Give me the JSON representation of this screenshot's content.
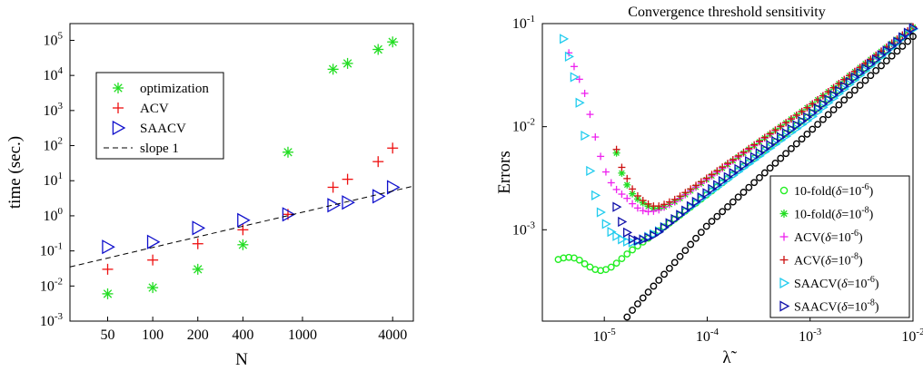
{
  "chart_data": [
    {
      "type": "scatter",
      "title": "",
      "xlabel": "N",
      "ylabel": "time (sec.)",
      "x_scale": "log",
      "y_scale": "log",
      "xlim": [
        28,
        5500
      ],
      "ylim": [
        0.001,
        300000
      ],
      "x_ticks": [
        50,
        100,
        200,
        400,
        1000,
        4000
      ],
      "x_tick_labels": [
        "50",
        "100",
        "200",
        "400",
        "1000",
        "4000"
      ],
      "y_ticks": [
        0.001,
        0.01,
        0.1,
        1,
        10,
        100,
        1000,
        10000,
        100000
      ],
      "y_tick_labels": [
        {
          "base": "10",
          "exp": "-3"
        },
        {
          "base": "10",
          "exp": "-2"
        },
        {
          "base": "10",
          "exp": "-1"
        },
        {
          "base": "10",
          "exp": "0"
        },
        {
          "base": "10",
          "exp": "1"
        },
        {
          "base": "10",
          "exp": "2"
        },
        {
          "base": "10",
          "exp": "3"
        },
        {
          "base": "10",
          "exp": "4"
        },
        {
          "base": "10",
          "exp": "5"
        }
      ],
      "grid": false,
      "legend_position": "top-left",
      "series": [
        {
          "name": "optimization",
          "marker": "asterisk",
          "color": "#22dd22",
          "x": [
            50,
            100,
            200,
            400,
            800,
            1600,
            2000,
            3200,
            4000
          ],
          "y": [
            0.006,
            0.009,
            0.03,
            0.15,
            65,
            15000,
            22000,
            55000,
            90000
          ]
        },
        {
          "name": "ACV",
          "marker": "plus",
          "color": "#ee1111",
          "x": [
            50,
            100,
            200,
            400,
            800,
            1600,
            2000,
            3200,
            4000
          ],
          "y": [
            0.03,
            0.055,
            0.16,
            0.4,
            1.1,
            6.5,
            11,
            35,
            85
          ]
        },
        {
          "name": "SAACV",
          "marker": "triangle-right",
          "color": "#1111cc",
          "x": [
            50,
            100,
            200,
            400,
            800,
            1600,
            2000,
            3200,
            4000
          ],
          "y": [
            0.13,
            0.18,
            0.45,
            0.75,
            1.1,
            2.0,
            2.4,
            3.6,
            6.5
          ]
        },
        {
          "name": "slope 1",
          "marker": "dashed-line",
          "color": "#000000",
          "x": [
            28,
            5500
          ],
          "y": [
            0.035,
            7.0
          ]
        }
      ]
    },
    {
      "type": "scatter",
      "title": "Convergence threshold sensitivity",
      "xlabel": "λ̃",
      "ylabel": "Errors",
      "x_scale": "log",
      "y_scale": "log",
      "xlim": [
        2.5e-06,
        0.01
      ],
      "ylim": [
        0.00013,
        0.1
      ],
      "x_ticks": [
        1e-05,
        0.0001,
        0.001,
        0.01
      ],
      "x_tick_labels": [
        {
          "base": "10",
          "exp": "-5"
        },
        {
          "base": "10",
          "exp": "-4"
        },
        {
          "base": "10",
          "exp": "-3"
        },
        {
          "base": "10",
          "exp": "-2"
        }
      ],
      "y_ticks": [
        0.001,
        0.01,
        0.1
      ],
      "y_tick_labels": [
        {
          "base": "10",
          "exp": "-3"
        },
        {
          "base": "10",
          "exp": "-2"
        },
        {
          "base": "10",
          "exp": "-1"
        }
      ],
      "grid": false,
      "legend_position": "bottom-right",
      "legend_entries": [
        {
          "prefix": "10-fold(",
          "delta": "δ",
          "eq": "=10",
          "exp": "-6",
          "suffix": ")"
        },
        {
          "prefix": "10-fold(",
          "delta": "δ",
          "eq": "=10",
          "exp": "-8",
          "suffix": ")"
        },
        {
          "prefix": "ACV(",
          "delta": "δ",
          "eq": "=10",
          "exp": "-6",
          "suffix": ")"
        },
        {
          "prefix": "ACV(",
          "delta": "δ",
          "eq": "=10",
          "exp": "-8",
          "suffix": ")"
        },
        {
          "prefix": "SAACV(",
          "delta": "δ",
          "eq": "=10",
          "exp": "-6",
          "suffix": ")"
        },
        {
          "prefix": "SAACV(",
          "delta": "δ",
          "eq": "=10",
          "exp": "-8",
          "suffix": ")"
        }
      ],
      "series": [
        {
          "marker": "circle",
          "color": "#22ee22",
          "curve": "tenfold6"
        },
        {
          "marker": "asterisk",
          "color": "#22dd22",
          "curve": "tenfold8"
        },
        {
          "marker": "plus",
          "color": "#ee22ee",
          "curve": "acv6"
        },
        {
          "marker": "plus",
          "color": "#cc1111",
          "curve": "acv8"
        },
        {
          "marker": "triangle-right",
          "color": "#22ccee",
          "curve": "saacv6"
        },
        {
          "marker": "triangle-right",
          "color": "#1111aa",
          "curve": "saacv8"
        },
        {
          "marker": "circle",
          "color": "#000000",
          "curve": "reference"
        }
      ],
      "curves": {
        "tenfold6": [
          [
            3.2e-06,
            0.0005
          ],
          [
            3.7e-06,
            0.00052
          ],
          [
            4.2e-06,
            0.00054
          ],
          [
            4.9e-06,
            0.00054
          ],
          [
            5.7e-06,
            0.00051
          ],
          [
            6.6e-06,
            0.00046
          ],
          [
            7.7e-06,
            0.00042
          ],
          [
            8.9e-06,
            0.0004
          ],
          [
            1.03e-05,
            0.00041
          ],
          [
            1.2e-05,
            0.00044
          ],
          [
            1.4e-05,
            0.0005
          ],
          [
            1.62e-05,
            0.00057
          ],
          [
            1.88e-05,
            0.00064
          ],
          [
            2.2e-05,
            0.00072
          ],
          [
            2.55e-05,
            0.0008
          ],
          [
            3e-05,
            0.0009
          ],
          [
            3.5e-05,
            0.001
          ],
          [
            4e-05,
            0.0011
          ],
          [
            5e-05,
            0.0013
          ],
          [
            0.0001,
            0.0022
          ],
          [
            0.001,
            0.013
          ],
          [
            0.01,
            0.09
          ]
        ],
        "tenfold8": [
          [
            1.25e-05,
            0.0068
          ],
          [
            1.45e-05,
            0.0037
          ],
          [
            1.7e-05,
            0.0026
          ],
          [
            1.95e-05,
            0.0021
          ],
          [
            2.25e-05,
            0.0019
          ],
          [
            2.62e-05,
            0.0017
          ],
          [
            3.05e-05,
            0.0016
          ],
          [
            3.5e-05,
            0.00162
          ],
          [
            4e-05,
            0.0017
          ],
          [
            5e-05,
            0.0019
          ],
          [
            0.0001,
            0.0031
          ],
          [
            0.001,
            0.016
          ],
          [
            0.01,
            0.092
          ]
        ],
        "acv6": [
          [
            4.2e-06,
            0.063
          ],
          [
            5e-06,
            0.04
          ],
          [
            5.8e-06,
            0.028
          ],
          [
            6.7e-06,
            0.019
          ],
          [
            7.8e-06,
            0.0095
          ],
          [
            9e-06,
            0.0055
          ],
          [
            1.04e-05,
            0.0036
          ],
          [
            1.2e-05,
            0.0027
          ],
          [
            1.4e-05,
            0.0023
          ],
          [
            1.6e-05,
            0.0021
          ],
          [
            1.86e-05,
            0.0018
          ],
          [
            2.15e-05,
            0.0016
          ],
          [
            2.5e-05,
            0.0015
          ],
          [
            2.9e-05,
            0.0015
          ],
          [
            3.35e-05,
            0.00155
          ],
          [
            4e-05,
            0.0017
          ],
          [
            5e-05,
            0.0019
          ],
          [
            0.0001,
            0.0031
          ],
          [
            0.001,
            0.016
          ],
          [
            0.01,
            0.093
          ]
        ],
        "acv8": [
          [
            1.25e-05,
            0.0072
          ],
          [
            1.45e-05,
            0.0042
          ],
          [
            1.7e-05,
            0.003
          ],
          [
            1.95e-05,
            0.0023
          ],
          [
            2.25e-05,
            0.002
          ],
          [
            2.6e-05,
            0.0018
          ],
          [
            3e-05,
            0.0017
          ],
          [
            3.5e-05,
            0.0017
          ],
          [
            4e-05,
            0.0018
          ],
          [
            5e-05,
            0.002
          ],
          [
            0.0001,
            0.0032
          ],
          [
            0.001,
            0.016
          ],
          [
            0.01,
            0.093
          ]
        ],
        "saacv6": [
          [
            4e-06,
            0.072
          ],
          [
            4.7e-06,
            0.042
          ],
          [
            5.5e-06,
            0.022
          ],
          [
            6.5e-06,
            0.0078
          ],
          [
            7.5e-06,
            0.003
          ],
          [
            8.7e-06,
            0.0017
          ],
          [
            1e-05,
            0.0012
          ],
          [
            1.17e-05,
            0.00095
          ],
          [
            1.35e-05,
            0.00085
          ],
          [
            1.57e-05,
            0.00078
          ],
          [
            1.82e-05,
            0.00075
          ],
          [
            2.1e-05,
            0.00077
          ],
          [
            2.45e-05,
            0.00082
          ],
          [
            2.85e-05,
            0.00088
          ],
          [
            3.3e-05,
            0.00095
          ],
          [
            4e-05,
            0.0011
          ],
          [
            5e-05,
            0.0013
          ],
          [
            0.0001,
            0.0022
          ],
          [
            0.001,
            0.012
          ],
          [
            0.01,
            0.088
          ]
        ],
        "saacv8": [
          [
            1.22e-05,
            0.0021
          ],
          [
            1.42e-05,
            0.0013
          ],
          [
            1.65e-05,
            0.00095
          ],
          [
            1.9e-05,
            0.0008
          ],
          [
            2.2e-05,
            0.00078
          ],
          [
            2.55e-05,
            0.00082
          ],
          [
            3e-05,
            0.00088
          ],
          [
            3.5e-05,
            0.00097
          ],
          [
            4e-05,
            0.0011
          ],
          [
            5e-05,
            0.0013
          ],
          [
            0.0001,
            0.0023
          ],
          [
            0.001,
            0.013
          ],
          [
            0.01,
            0.09
          ]
        ],
        "reference": [
          [
            1.55e-05,
            0.00013
          ],
          [
            2e-05,
            0.00018
          ],
          [
            5e-05,
            0.0005
          ],
          [
            0.0001,
            0.0011
          ],
          [
            0.001,
            0.009
          ],
          [
            0.01,
            0.075
          ]
        ]
      }
    }
  ]
}
